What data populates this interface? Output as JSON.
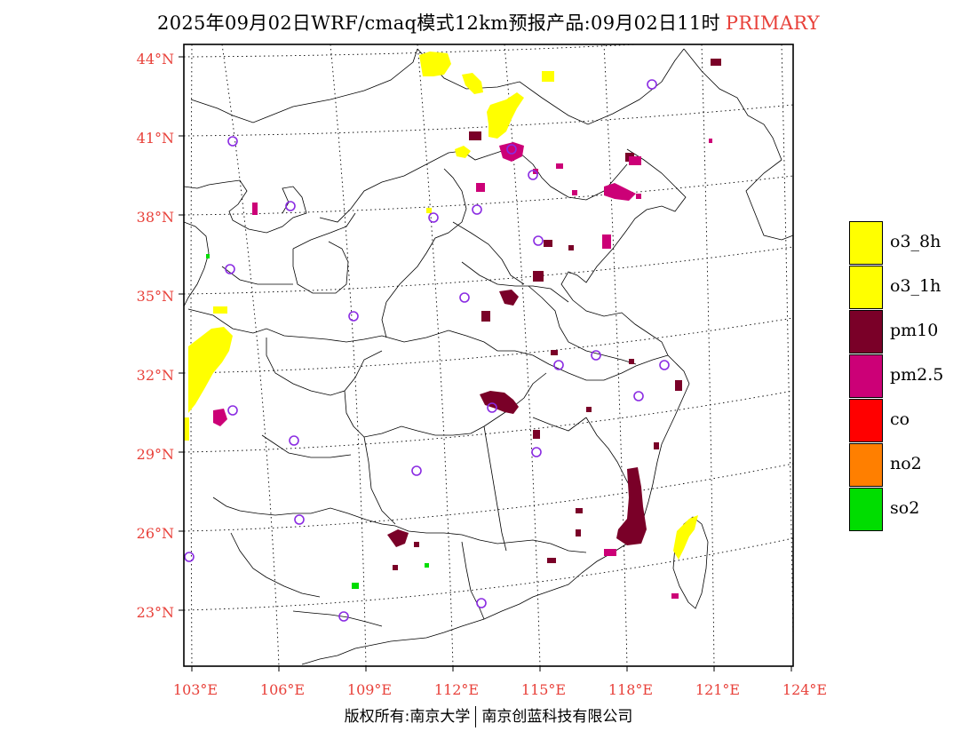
{
  "title": {
    "main": "2025年09月02日WRF/cmaq模式12km预报产品:09月02日11时",
    "flag": "PRIMARY"
  },
  "colors": {
    "tick_label": "#e8413a",
    "o3": "#ffff00",
    "pm10": "#7a0028",
    "pm25": "#cc0077",
    "co": "#ff0000",
    "no2": "#ff7f00",
    "so2": "#00dd00",
    "station": "#8a2be2"
  },
  "map": {
    "lat_labels": [
      "44°N",
      "41°N",
      "38°N",
      "35°N",
      "32°N",
      "29°N",
      "26°N",
      "23°N"
    ],
    "lon_labels": [
      "103°E",
      "106°E",
      "109°E",
      "112°E",
      "115°E",
      "118°E",
      "121°E",
      "124°E"
    ]
  },
  "legend": [
    {
      "label": "o3_8h",
      "color": "#ffff00"
    },
    {
      "label": "o3_1h",
      "color": "#ffff00"
    },
    {
      "label": "pm10",
      "color": "#7a0028"
    },
    {
      "label": "pm2.5",
      "color": "#cc0077"
    },
    {
      "label": "co",
      "color": "#ff0000"
    },
    {
      "label": "no2",
      "color": "#ff7f00"
    },
    {
      "label": "so2",
      "color": "#00dd00"
    }
  ],
  "copyright": {
    "left": "版权所有:南京大学",
    "right": "南京创蓝科技有限公司"
  }
}
